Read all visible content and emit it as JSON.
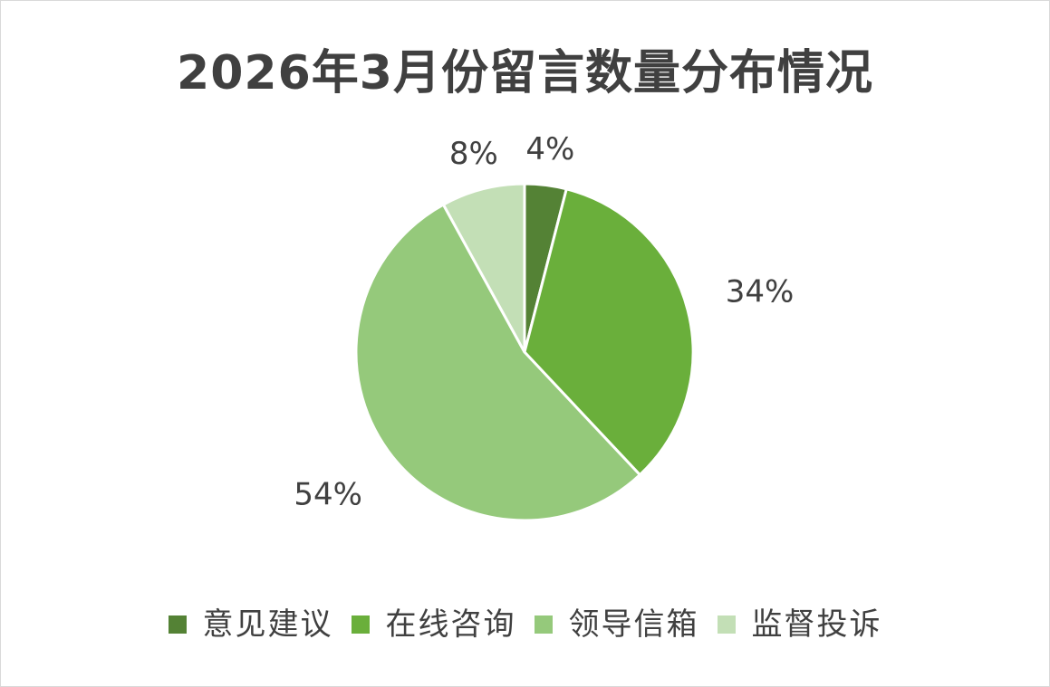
{
  "chart_data": {
    "type": "pie",
    "title": "2026年3月份留言数量分布情况",
    "categories": [
      "意见建议",
      "在线咨询",
      "领导信箱",
      "监督投诉"
    ],
    "values": [
      4,
      34,
      54,
      8
    ],
    "labels": [
      "4%",
      "34%",
      "54%",
      "8%"
    ],
    "colors": [
      "#548235",
      "#6aaf3b",
      "#95c97b",
      "#c3dfb6"
    ],
    "legend_position": "bottom",
    "start_angle": "12 o'clock",
    "direction": "clockwise"
  }
}
